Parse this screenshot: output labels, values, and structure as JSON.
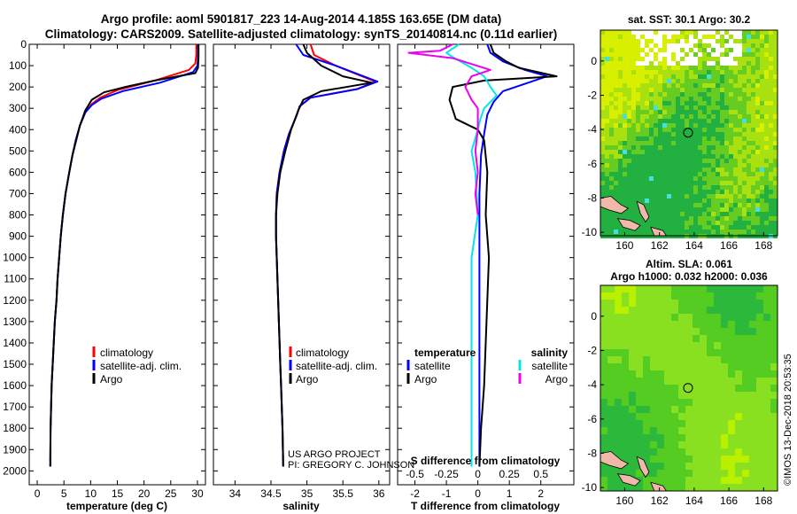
{
  "header": {
    "title_line1": "Argo profile: aoml 5901817_223 14-Aug-2014 4.185S 163.65E (DM data)",
    "title_line2": "Climatology: CARS2009. Satellite-adjusted climatology: synTS_20140814.nc (0.11d earlier)"
  },
  "colors": {
    "climatology": "#ff0000",
    "satellite": "#0000ff",
    "argo": "#000000",
    "salinity_satellite": "#00e5ee",
    "salinity_argo": "#ee00ee",
    "land": "#f0b8a8"
  },
  "depth_axis": {
    "ticks": [
      0,
      100,
      200,
      300,
      400,
      500,
      600,
      700,
      800,
      900,
      1000,
      1100,
      1200,
      1300,
      1400,
      1500,
      1600,
      1700,
      1800,
      1900,
      2000
    ],
    "ylim": [
      0,
      2065
    ]
  },
  "credit": {
    "line1": "US ARGO PROJECT",
    "line2": "PI: GREGORY C. JOHNSON"
  },
  "timestamp": "©IMOS 13-Dec-2018 20:53:35",
  "chart_data": [
    {
      "type": "line",
      "xlabel": "temperature (deg C)",
      "ylabel": "",
      "xlim": [
        -1.5,
        31.5
      ],
      "xticks": [
        0,
        5,
        10,
        15,
        20,
        25,
        30
      ],
      "xticklabels": [
        "0",
        "5",
        "10",
        "15",
        "20",
        "25",
        "30"
      ],
      "legend": {
        "placement": "lower-center",
        "entries": [
          "climatology",
          "satellite-adj. clim.",
          "Argo"
        ]
      },
      "series": [
        {
          "name": "climatology",
          "color": "#ff0000",
          "x": [
            29.8,
            29.8,
            29.6,
            28.4,
            22.0,
            15.0,
            11.8,
            10.2,
            9.0,
            8.0,
            7.2,
            6.6,
            6.0,
            5.3,
            4.8,
            4.4,
            4.1,
            3.8,
            3.6,
            3.3,
            3.1,
            2.9,
            2.7,
            2.6,
            2.5,
            2.45
          ],
          "y": [
            0,
            50,
            90,
            120,
            170,
            215,
            250,
            280,
            320,
            380,
            450,
            520,
            600,
            700,
            800,
            900,
            1000,
            1100,
            1200,
            1300,
            1400,
            1500,
            1600,
            1700,
            1800,
            1950
          ]
        },
        {
          "name": "satellite-adj. clim.",
          "color": "#0000ff",
          "x": [
            30.1,
            30.1,
            30.0,
            29.2,
            23.0,
            16.0,
            12.0,
            10.2,
            9.0,
            8.0,
            7.2,
            6.6,
            6.0,
            5.3,
            4.8,
            4.4,
            4.1,
            3.8,
            3.6,
            3.3,
            3.1,
            2.9,
            2.7,
            2.6,
            2.5,
            2.45
          ],
          "y": [
            0,
            50,
            100,
            130,
            180,
            220,
            255,
            285,
            320,
            380,
            450,
            520,
            600,
            700,
            800,
            900,
            1000,
            1100,
            1200,
            1300,
            1400,
            1500,
            1600,
            1700,
            1800,
            1980
          ]
        },
        {
          "name": "Argo",
          "color": "#000000",
          "x": [
            30.2,
            30.2,
            30.1,
            29.6,
            22.0,
            16.5,
            12.5,
            10.2,
            9.0,
            8.0,
            7.3,
            6.6,
            6.0,
            5.3,
            4.8,
            4.4,
            4.1,
            3.8,
            3.6,
            3.3,
            3.1,
            2.9,
            2.7,
            2.6,
            2.5,
            2.45
          ],
          "y": [
            0,
            60,
            110,
            135,
            170,
            200,
            225,
            260,
            310,
            380,
            450,
            520,
            600,
            700,
            800,
            900,
            1000,
            1100,
            1200,
            1300,
            1400,
            1500,
            1600,
            1700,
            1800,
            1980
          ]
        }
      ]
    },
    {
      "type": "line",
      "xlabel": "salinity",
      "ylabel": "",
      "xlim": [
        33.7,
        36.15
      ],
      "xticks": [
        34,
        34.5,
        35,
        35.5,
        36
      ],
      "xticklabels": [
        "34",
        "34.5",
        "35",
        "35.5",
        "36"
      ],
      "legend": {
        "placement": "lower-right",
        "entries": [
          "climatology",
          "satellite-adj. clim.",
          "Argo"
        ]
      },
      "series": [
        {
          "name": "climatology",
          "color": "#ff0000",
          "x": [
            35.05,
            35.1,
            35.4,
            35.95,
            35.7,
            35.05,
            34.9,
            34.85,
            34.75,
            34.68,
            34.62,
            34.58,
            34.57,
            34.57,
            34.58,
            34.59,
            34.6,
            34.61,
            34.62,
            34.63,
            34.64,
            34.65,
            34.66,
            34.67
          ],
          "y": [
            0,
            50,
            100,
            175,
            210,
            250,
            290,
            340,
            420,
            500,
            600,
            700,
            800,
            900,
            1000,
            1100,
            1200,
            1300,
            1400,
            1500,
            1600,
            1700,
            1800,
            1950
          ]
        },
        {
          "name": "satellite-adj. clim.",
          "color": "#0000ff",
          "x": [
            34.85,
            34.95,
            35.4,
            35.98,
            35.7,
            35.05,
            34.9,
            34.85,
            34.75,
            34.68,
            34.62,
            34.58,
            34.57,
            34.57,
            34.58,
            34.59,
            34.6,
            34.61,
            34.62,
            34.63,
            34.64,
            34.65,
            34.66,
            34.67
          ],
          "y": [
            0,
            50,
            100,
            175,
            210,
            250,
            290,
            340,
            420,
            500,
            600,
            700,
            800,
            900,
            1000,
            1100,
            1200,
            1300,
            1400,
            1500,
            1600,
            1700,
            1800,
            1980
          ]
        },
        {
          "name": "Argo",
          "color": "#000000",
          "x": [
            34.95,
            35.0,
            35.2,
            35.5,
            35.9,
            35.2,
            34.95,
            34.88,
            34.78,
            34.7,
            34.63,
            34.59,
            34.57,
            34.57,
            34.58,
            34.59,
            34.6,
            34.61,
            34.62,
            34.63,
            34.64,
            34.65,
            34.66,
            34.67
          ],
          "y": [
            0,
            40,
            100,
            150,
            180,
            220,
            260,
            310,
            400,
            500,
            600,
            700,
            800,
            900,
            1000,
            1100,
            1200,
            1300,
            1400,
            1500,
            1600,
            1700,
            1800,
            1980
          ]
        }
      ]
    },
    {
      "type": "line",
      "xlabel": "T difference from climatology",
      "ylabel": "",
      "xlim": [
        -2.55,
        3.05
      ],
      "xticks": [
        -2,
        -1,
        0,
        1,
        2
      ],
      "xticklabels": [
        "-2",
        "-1",
        "0",
        "1",
        "2"
      ],
      "x2label": "S difference from climatology",
      "x2ticks": [
        -0.5,
        -0.25,
        0,
        0.25,
        0.5
      ],
      "x2ticklabels": [
        "-0.5",
        "-0.25",
        "0",
        "0.25",
        "0.5"
      ],
      "legend": {
        "placement": "lower",
        "headers": [
          "temperature",
          "salinity"
        ],
        "entries": [
          "satellite",
          "Argo",
          "satellite",
          "Argo"
        ]
      },
      "series": [
        {
          "name": "temperature satellite",
          "color": "#0000ff",
          "x": [
            0.3,
            0.4,
            0.8,
            1.5,
            2.2,
            1.6,
            0.8,
            0.5,
            0.3,
            0.2,
            0.1,
            0.05,
            0.05,
            0.05,
            0.05,
            0.05,
            0.05
          ],
          "y": [
            0,
            40,
            80,
            120,
            150,
            180,
            220,
            270,
            330,
            420,
            520,
            700,
            900,
            1100,
            1400,
            1700,
            1980
          ]
        },
        {
          "name": "temperature Argo",
          "color": "#000000",
          "x": [
            0.4,
            0.5,
            0.9,
            1.3,
            2.5,
            0.2,
            -0.8,
            -0.9,
            -0.7,
            0.0,
            0.2,
            0.3,
            0.25,
            0.35,
            0.3,
            0.25,
            0.2,
            0.1,
            0.05
          ],
          "y": [
            0,
            40,
            80,
            110,
            150,
            170,
            200,
            260,
            350,
            400,
            450,
            600,
            800,
            1000,
            1200,
            1400,
            1600,
            1800,
            1980
          ]
        },
        {
          "name": "salinity satellite",
          "color": "#00e5ee",
          "x": [
            -0.15,
            -0.25,
            -0.2,
            -0.05,
            0.05,
            0.1,
            0.15,
            0.05,
            0.02,
            0.0,
            -0.05,
            -0.02,
            0.0,
            -0.05,
            -0.05,
            -0.05,
            -0.05,
            -0.05,
            -0.05
          ],
          "y": [
            0,
            40,
            60,
            110,
            150,
            200,
            240,
            300,
            350,
            400,
            500,
            600,
            800,
            1000,
            1200,
            1400,
            1600,
            1800,
            1980
          ]
        },
        {
          "name": "salinity Argo",
          "color": "#ee00ee",
          "x": [
            -0.2,
            -0.3,
            -0.55,
            -0.2,
            0.1,
            -0.05,
            -0.1,
            -0.05,
            0.0,
            0.0,
            -0.02,
            0.0,
            -0.02,
            0.0
          ],
          "y": [
            0,
            30,
            40,
            65,
            120,
            150,
            200,
            260,
            300,
            400,
            500,
            600,
            700,
            800
          ]
        }
      ]
    },
    {
      "type": "heatmap",
      "title": "sat. SST: 30.1 Argo: 30.2",
      "xlim": [
        158.6,
        168.8
      ],
      "ylim": [
        -10.2,
        1.8
      ],
      "xticks": [
        160,
        162,
        164,
        166,
        168
      ],
      "yticks": [
        0,
        -2,
        -4,
        -6,
        -8,
        -10
      ],
      "marker": {
        "lon": 163.65,
        "lat": -4.185
      }
    },
    {
      "type": "heatmap",
      "title": "Altim. SLA: 0.061",
      "subtitle": "Argo h1000: 0.032 h2000: 0.036",
      "xlim": [
        158.6,
        168.8
      ],
      "ylim": [
        -10.2,
        1.8
      ],
      "xticks": [
        160,
        162,
        164,
        166,
        168
      ],
      "yticks": [
        0,
        -2,
        -4,
        -6,
        -8,
        -10
      ],
      "marker": {
        "lon": 163.65,
        "lat": -4.185
      }
    }
  ]
}
